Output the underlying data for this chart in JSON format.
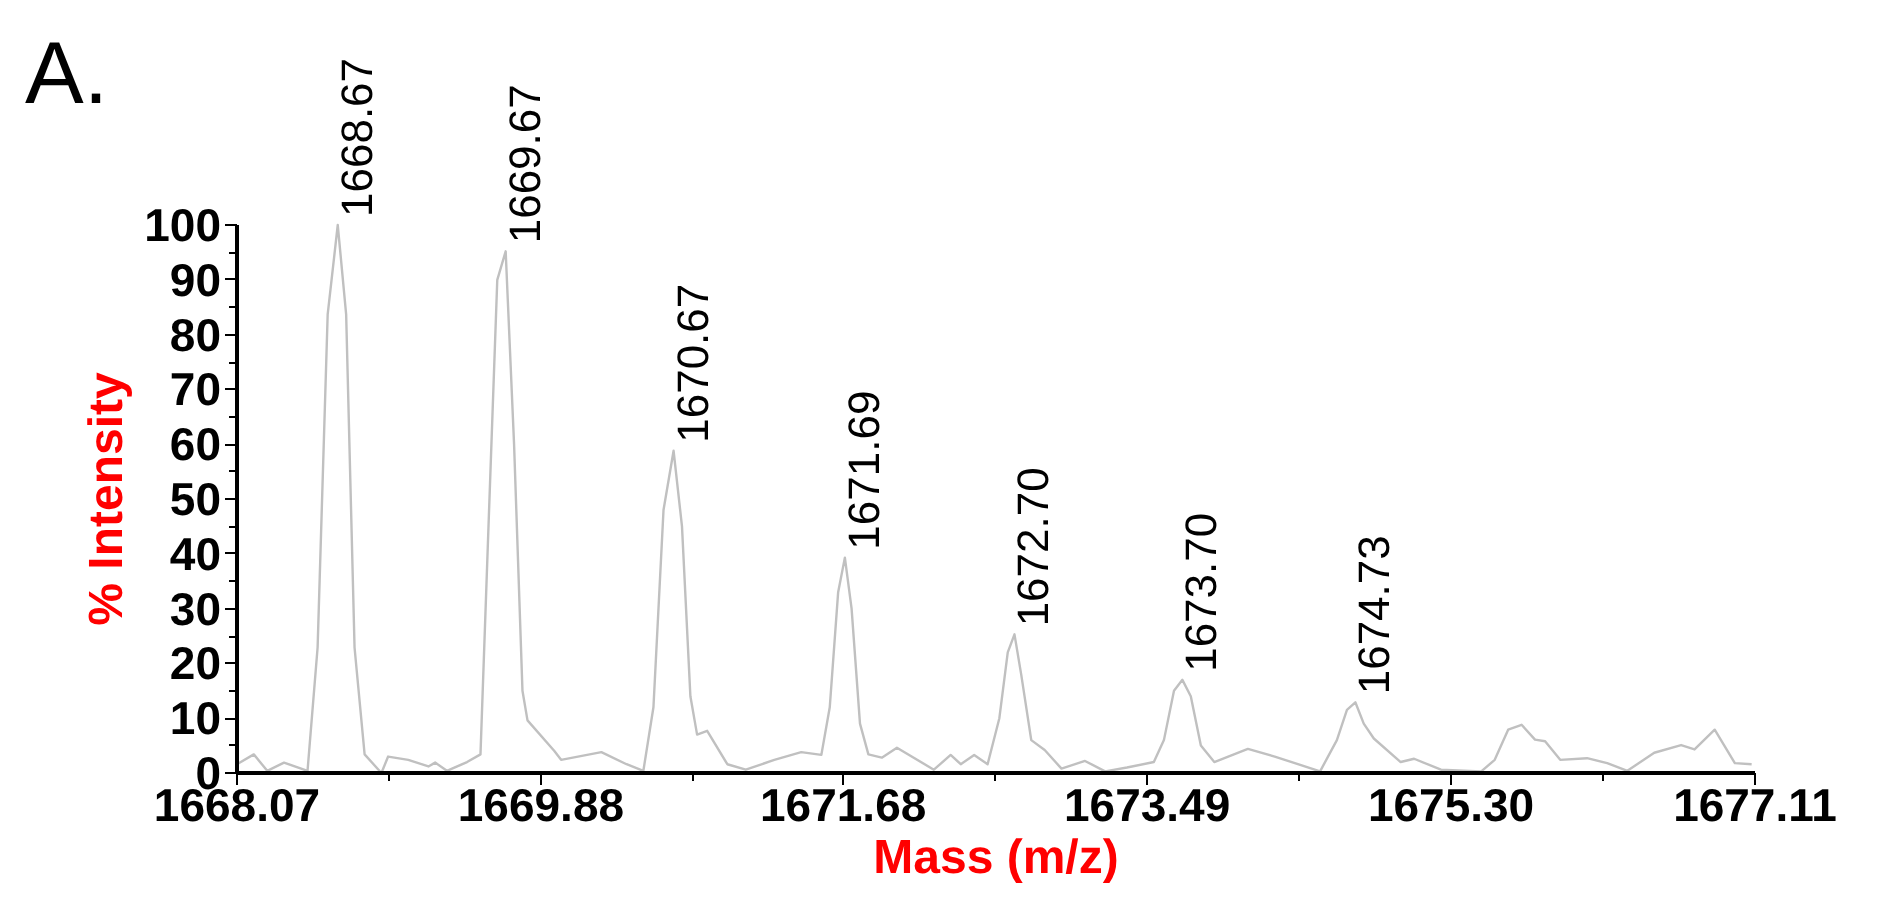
{
  "chart_data": {
    "type": "line",
    "title": "A.",
    "xlabel": "Mass (m/z)",
    "ylabel": "% Intensity",
    "xlim": [
      1668.07,
      1677.11
    ],
    "ylim": [
      0,
      100
    ],
    "xticks": [
      1668.07,
      {
        "value": 1668.975,
        "label": null
      },
      1669.88,
      {
        "value": 1670.78,
        "label": null
      },
      1671.68,
      {
        "value": 1672.585,
        "label": null
      },
      1673.49,
      {
        "value": 1674.395,
        "label": null
      },
      {
        "value": 1675.3,
        "label": "1675.30"
      },
      {
        "value": 1676.205,
        "label": null
      },
      1677.11
    ],
    "yticks": [
      0,
      {
        "value": 5,
        "label": null
      },
      10,
      {
        "value": 15,
        "label": null
      },
      20,
      {
        "value": 25,
        "label": null
      },
      30,
      {
        "value": 35,
        "label": null
      },
      40,
      {
        "value": 45,
        "label": null
      },
      50,
      {
        "value": 55,
        "label": null
      },
      60,
      {
        "value": 65,
        "label": null
      },
      70,
      {
        "value": 75,
        "label": null
      },
      80,
      {
        "value": 85,
        "label": null
      },
      90,
      {
        "value": 95,
        "label": null
      },
      100
    ],
    "grid": false,
    "marker": "none",
    "line_style": "solid",
    "series": [
      {
        "color": "#c0c0c0",
        "x": [
          1668.07,
          1668.17,
          1668.25,
          1668.35,
          1668.49,
          1668.55,
          1668.61,
          1668.67,
          1668.72,
          1668.77,
          1668.83,
          1668.93,
          1668.97,
          1669.09,
          1669.21,
          1669.25,
          1669.32,
          1669.44,
          1669.52,
          1669.57,
          1669.62,
          1669.67,
          1669.72,
          1669.77,
          1669.8,
          1669.96,
          1670.0,
          1670.24,
          1670.39,
          1670.49,
          1670.55,
          1670.61,
          1670.67,
          1670.72,
          1670.77,
          1670.81,
          1670.87,
          1670.99,
          1671.1,
          1671.27,
          1671.43,
          1671.55,
          1671.6,
          1671.65,
          1671.69,
          1671.73,
          1671.78,
          1671.83,
          1671.91,
          1672.0,
          1672.22,
          1672.32,
          1672.38,
          1672.46,
          1672.54,
          1672.61,
          1672.66,
          1672.7,
          1672.74,
          1672.8,
          1672.88,
          1672.98,
          1673.12,
          1673.24,
          1673.37,
          1673.53,
          1673.59,
          1673.65,
          1673.7,
          1673.75,
          1673.81,
          1673.89,
          1674.09,
          1674.25,
          1674.52,
          1674.62,
          1674.68,
          1674.73,
          1674.78,
          1674.84,
          1675.0,
          1675.08,
          1675.24,
          1675.48,
          1675.56,
          1675.64,
          1675.72,
          1675.8,
          1675.86,
          1675.95,
          1676.11,
          1676.23,
          1676.35,
          1676.51,
          1676.67,
          1676.75,
          1676.87,
          1676.99,
          1677.09
        ],
        "values": [
          1.6,
          3.4,
          0.4,
          1.9,
          0.4,
          22.9,
          83.7,
          100,
          83.7,
          22.9,
          3.4,
          0,
          3,
          2.4,
          1.2,
          1.9,
          0.4,
          2,
          3.4,
          47,
          90,
          95.2,
          60,
          15,
          9.6,
          4,
          2.4,
          3.8,
          1.6,
          0.4,
          12,
          48,
          58.8,
          45,
          14,
          7,
          7.7,
          1.6,
          0.6,
          2.4,
          3.8,
          3.3,
          12,
          33,
          39.3,
          30,
          9,
          3.4,
          2.8,
          4.6,
          0.6,
          3.3,
          1.6,
          3.3,
          1.6,
          10,
          22,
          25.3,
          18,
          6,
          4.2,
          0.8,
          2.2,
          0.3,
          1,
          2,
          6,
          15,
          17,
          14,
          5,
          2,
          4.4,
          3,
          0.3,
          6,
          11.5,
          12.9,
          9,
          6.3,
          2,
          2.6,
          0.6,
          0.3,
          2.4,
          7.9,
          8.8,
          6.1,
          5.8,
          2.4,
          2.7,
          1.8,
          0.4,
          3.7,
          5.1,
          4.3,
          7.9,
          1.8,
          1.6
        ]
      }
    ],
    "annotations": [
      {
        "text": "1668.67",
        "x": 1668.67,
        "y": 100
      },
      {
        "text": "1669.67",
        "x": 1669.67,
        "y": 95.2
      },
      {
        "text": "1670.67",
        "x": 1670.67,
        "y": 58.8
      },
      {
        "text": "1671.69",
        "x": 1671.69,
        "y": 39.3
      },
      {
        "text": "1672.70",
        "x": 1672.7,
        "y": 25.3
      },
      {
        "text": "1673.70",
        "x": 1673.7,
        "y": 17
      },
      {
        "text": "1674.73",
        "x": 1674.73,
        "y": 12.9
      }
    ]
  }
}
